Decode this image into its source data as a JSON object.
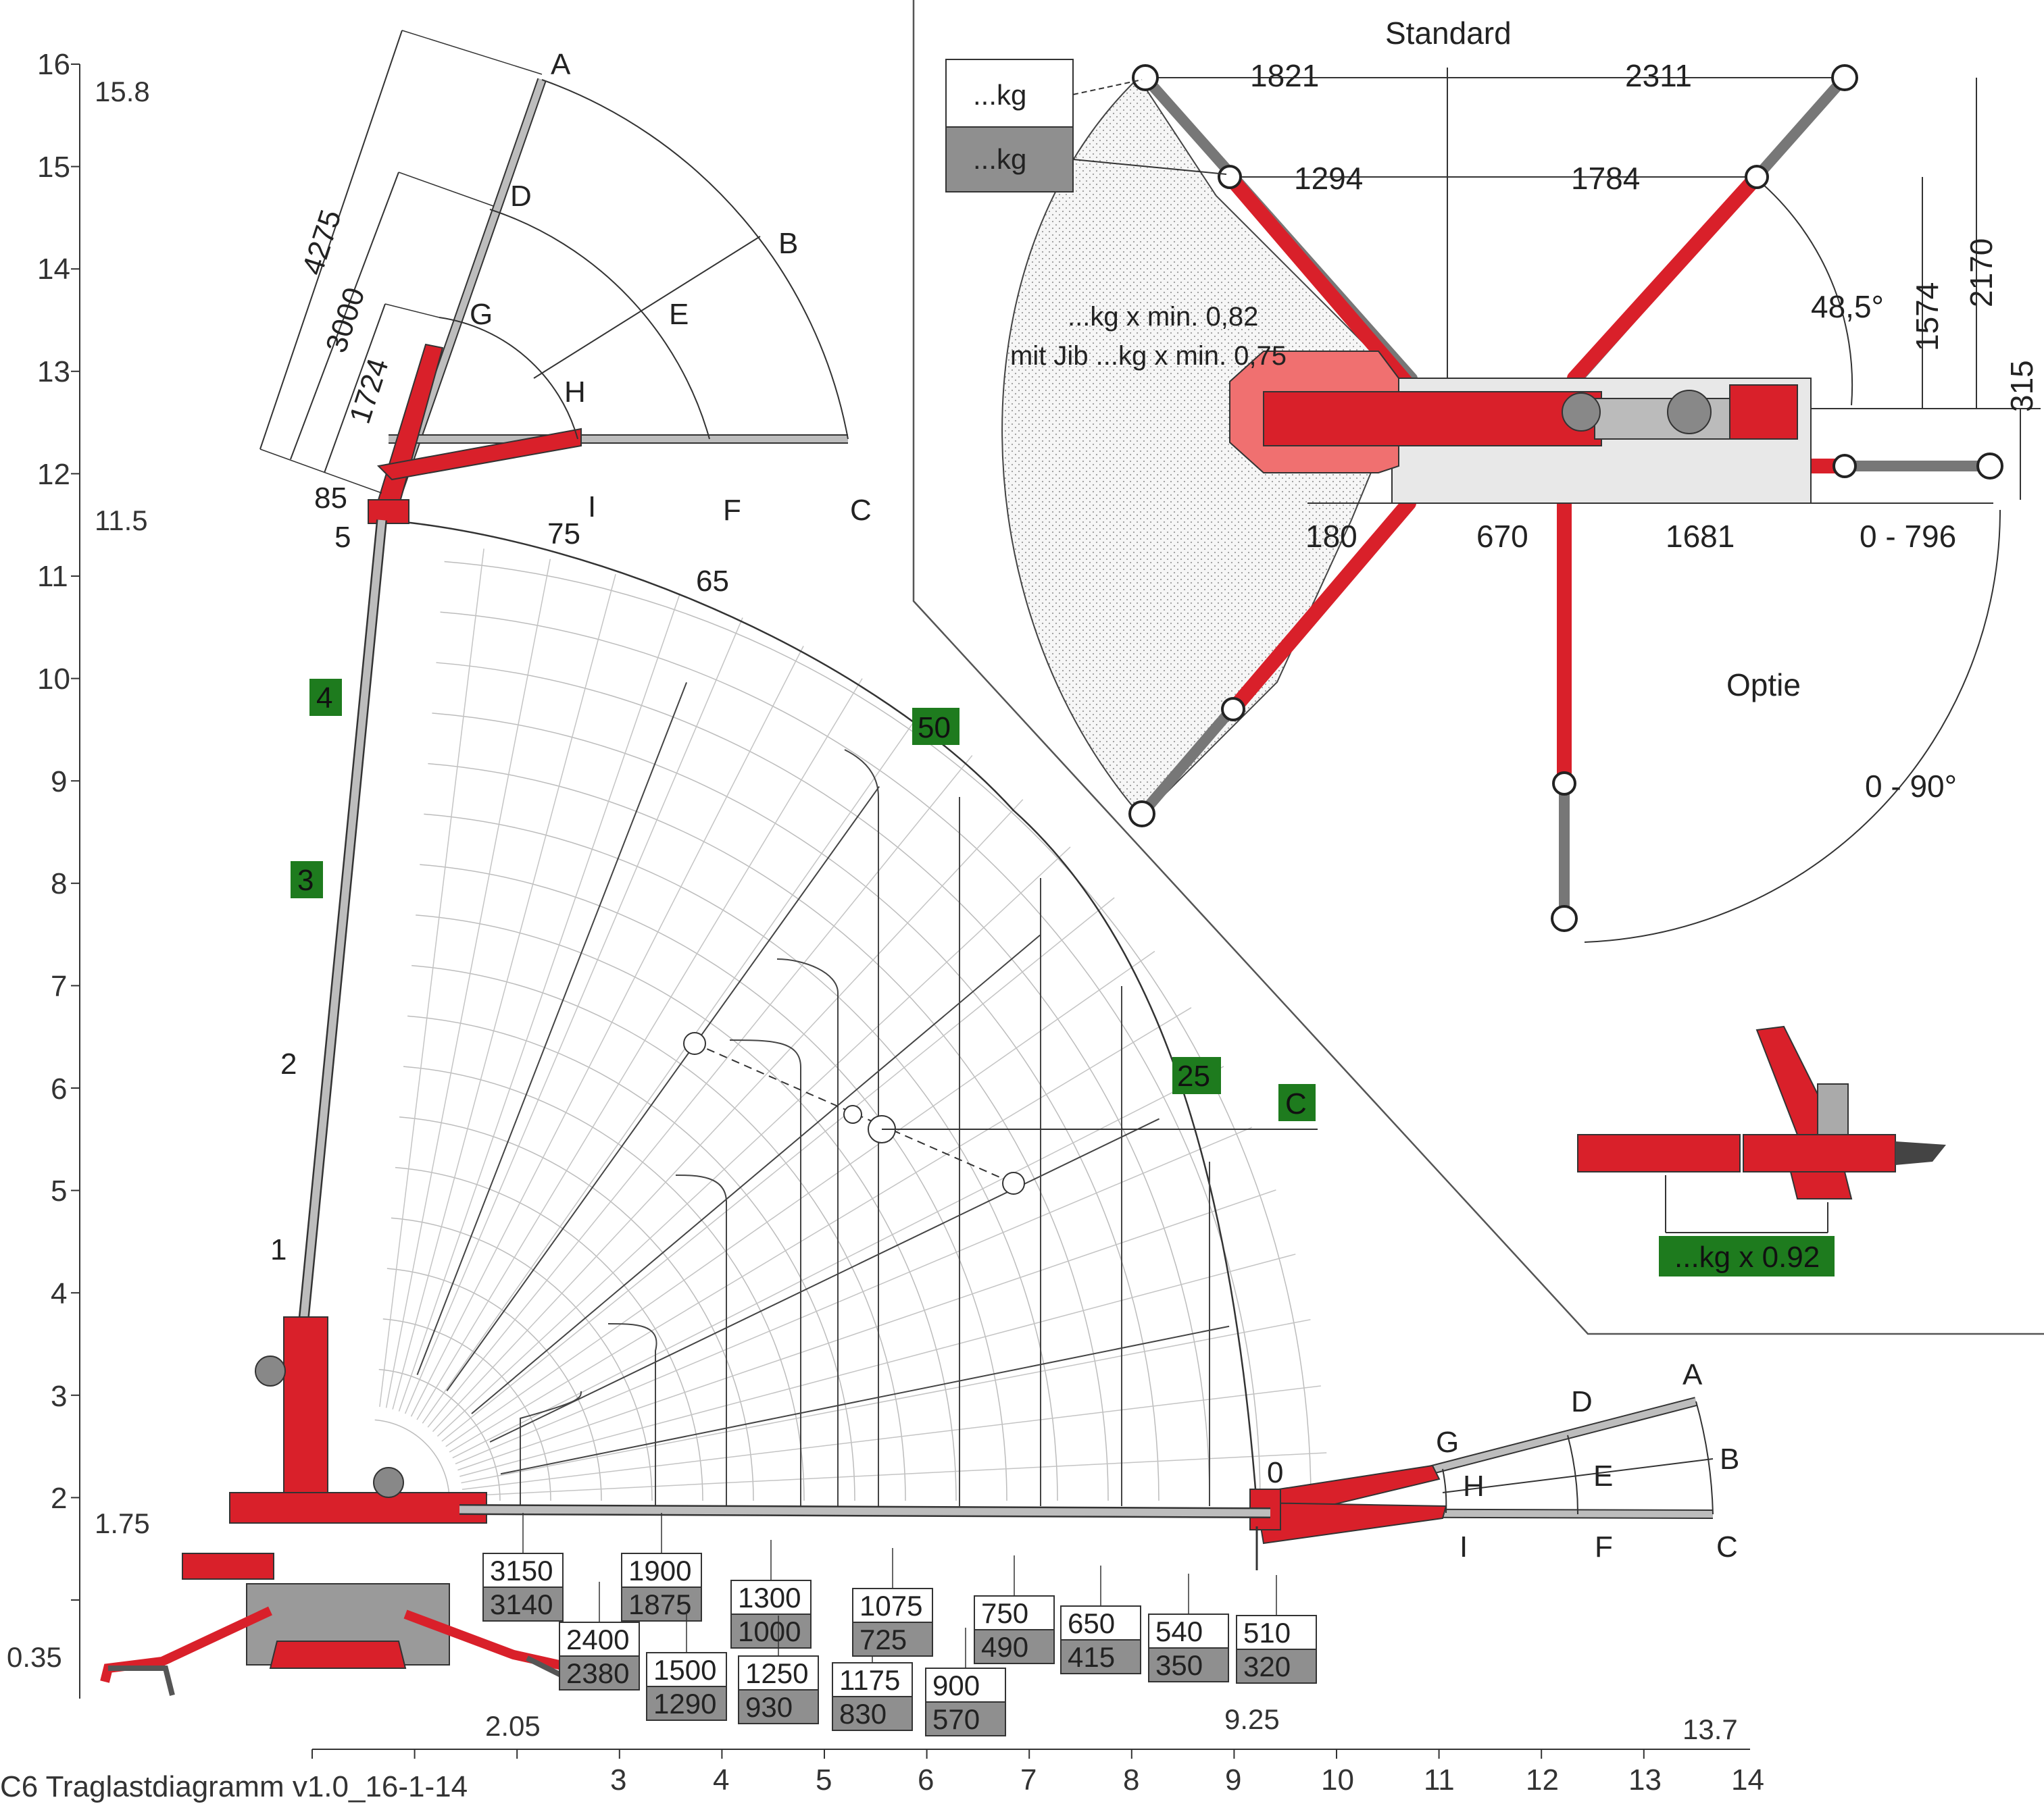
{
  "footer_title": "C6 Traglastdiagramm v1.0_16-1-14",
  "height_axis": {
    "ticks": [
      "16",
      "15",
      "14",
      "13",
      "12",
      "11",
      "10",
      "9",
      "8",
      "7",
      "6",
      "5",
      "4",
      "3",
      "2"
    ],
    "inner_marks": [
      "15.8",
      "11.5",
      "1.75",
      "0.35"
    ]
  },
  "reach_axis": {
    "ticks": [
      "3",
      "4",
      "5",
      "6",
      "7",
      "8",
      "9",
      "10",
      "11",
      "12",
      "13",
      "14"
    ],
    "marks": [
      "2.05",
      "9.25",
      "13.7"
    ]
  },
  "jib_top": {
    "points": [
      "A",
      "B",
      "C",
      "D",
      "E",
      "F",
      "G",
      "H",
      "I"
    ],
    "dims": [
      "4275",
      "3000",
      "1724"
    ],
    "angles": [
      "85",
      "5",
      "75",
      "65"
    ]
  },
  "jib_side": {
    "points": [
      "A",
      "B",
      "C",
      "D",
      "E",
      "F",
      "G",
      "H",
      "I"
    ],
    "zero": "0"
  },
  "boom_sections": [
    "1",
    "2",
    "3",
    "4"
  ],
  "angle_badges": [
    "50",
    "25"
  ],
  "c_badge": "C",
  "load_boxes": [
    {
      "top": "3150",
      "bottom": "3140"
    },
    {
      "top": "2400",
      "bottom": "2380"
    },
    {
      "top": "1900",
      "bottom": "1875"
    },
    {
      "top": "1500",
      "bottom": "1290"
    },
    {
      "top": "1300",
      "bottom": "1000"
    },
    {
      "top": "1250",
      "bottom": "930"
    },
    {
      "top": "1175",
      "bottom": "830"
    },
    {
      "top": "1075",
      "bottom": "725"
    },
    {
      "top": "900",
      "bottom": "570"
    },
    {
      "top": "750",
      "bottom": "490"
    },
    {
      "top": "650",
      "bottom": "415"
    },
    {
      "top": "540",
      "bottom": "350"
    },
    {
      "top": "510",
      "bottom": "320"
    }
  ],
  "outrigger_panel": {
    "title_standard": "Standard",
    "title_optie": "Optie",
    "legend_white": "...kg",
    "legend_grey": "...kg",
    "note_line1": "...kg x min. 0,82",
    "note_line2": "mit Jib ...kg x min. 0,75",
    "dims": [
      "1821",
      "2311",
      "1294",
      "1784",
      "48,5°",
      "1574",
      "2170",
      "315",
      "180",
      "670",
      "1681",
      "0 - 796",
      "0 - 90°"
    ]
  },
  "detail_label": "...kg x 0.92",
  "colors": {
    "red": "#d9202a",
    "grey": "#8f8f8f",
    "green": "#1e7b1e",
    "stipple": "#f2f2f2"
  }
}
